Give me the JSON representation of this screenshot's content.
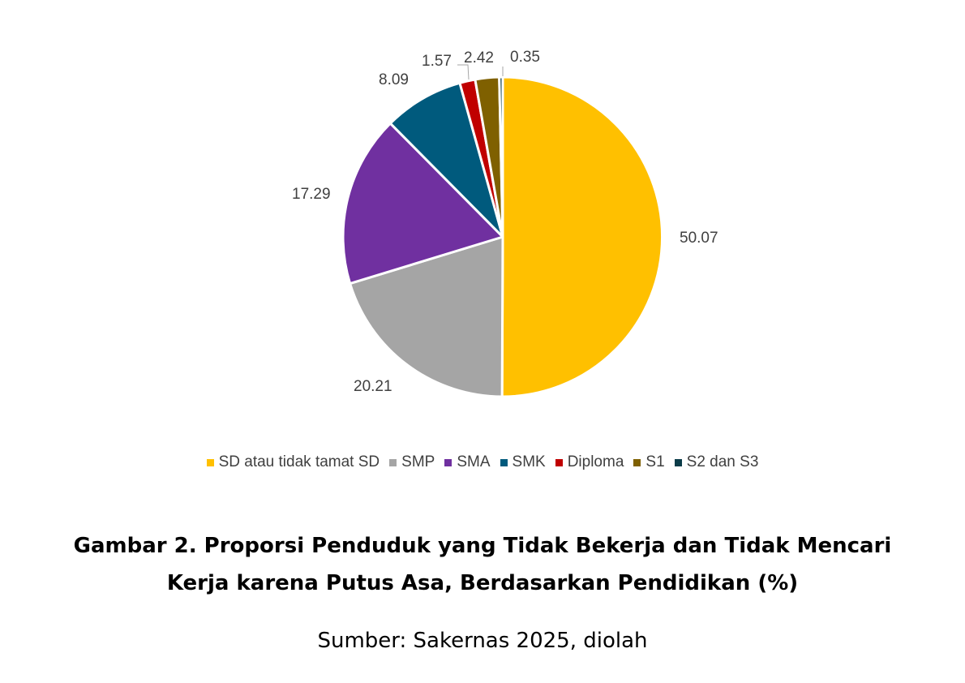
{
  "chart_data": {
    "type": "pie",
    "title": "Gambar 2. Proporsi Penduduk yang Tidak Bekerja dan Tidak Mencari Kerja karena Putus Asa, Berdasarkan Pendidikan (%)",
    "source": "Sumber: Sakernas 2025, diolah",
    "categories": [
      "SD atau tidak tamat SD",
      "SMP",
      "SMA",
      "SMK",
      "Diploma",
      "S1",
      "S2 dan S3"
    ],
    "values": [
      50.07,
      20.21,
      17.29,
      8.09,
      1.57,
      2.42,
      0.35
    ],
    "colors": [
      "#FFC000",
      "#A5A5A5",
      "#7030A0",
      "#005A7D",
      "#C00000",
      "#7F6000",
      "#0B3C49"
    ],
    "start_angle_deg": 0,
    "direction": "clockwise",
    "legend_position": "bottom",
    "data_labels": [
      "50.07",
      "20.21",
      "17.29",
      "8.09",
      "1.57",
      "2.42",
      "0.35"
    ]
  },
  "legend": {
    "items": [
      {
        "label": "SD atau tidak tamat SD",
        "color": "#FFC000"
      },
      {
        "label": "SMP",
        "color": "#A5A5A5"
      },
      {
        "label": "SMA",
        "color": "#7030A0"
      },
      {
        "label": "SMK",
        "color": "#005A7D"
      },
      {
        "label": "Diploma",
        "color": "#C00000"
      },
      {
        "label": "S1",
        "color": "#7F6000"
      },
      {
        "label": "S2 dan S3",
        "color": "#0B3C49"
      }
    ]
  },
  "caption": {
    "line1": "Gambar 2. Proporsi Penduduk yang Tidak Bekerja dan Tidak Mencari",
    "line2": "Kerja karena Putus Asa, Berdasarkan Pendidikan (%)",
    "source": "Sumber: Sakernas 2025, diolah"
  }
}
